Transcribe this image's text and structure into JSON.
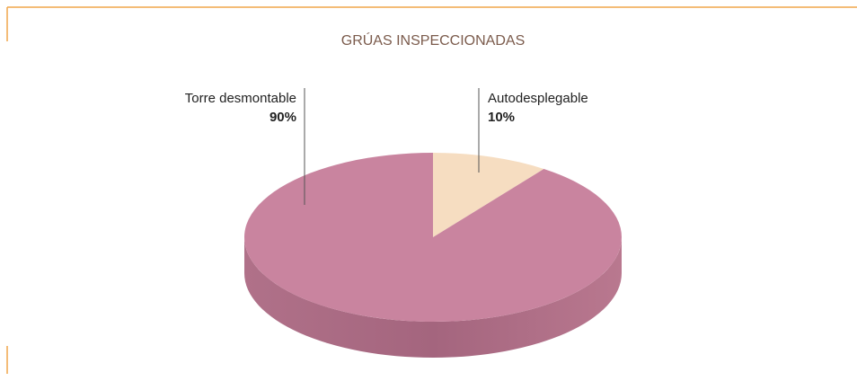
{
  "chart_data": {
    "type": "pie",
    "title": "GRÚAS INSPECCIONADAS",
    "categories": [
      "Torre desmontable",
      "Autodesplegable"
    ],
    "values": [
      90,
      10
    ],
    "value_labels": [
      "90%",
      "10%"
    ],
    "colors": [
      "#c9849f",
      "#f6ddc1"
    ]
  }
}
